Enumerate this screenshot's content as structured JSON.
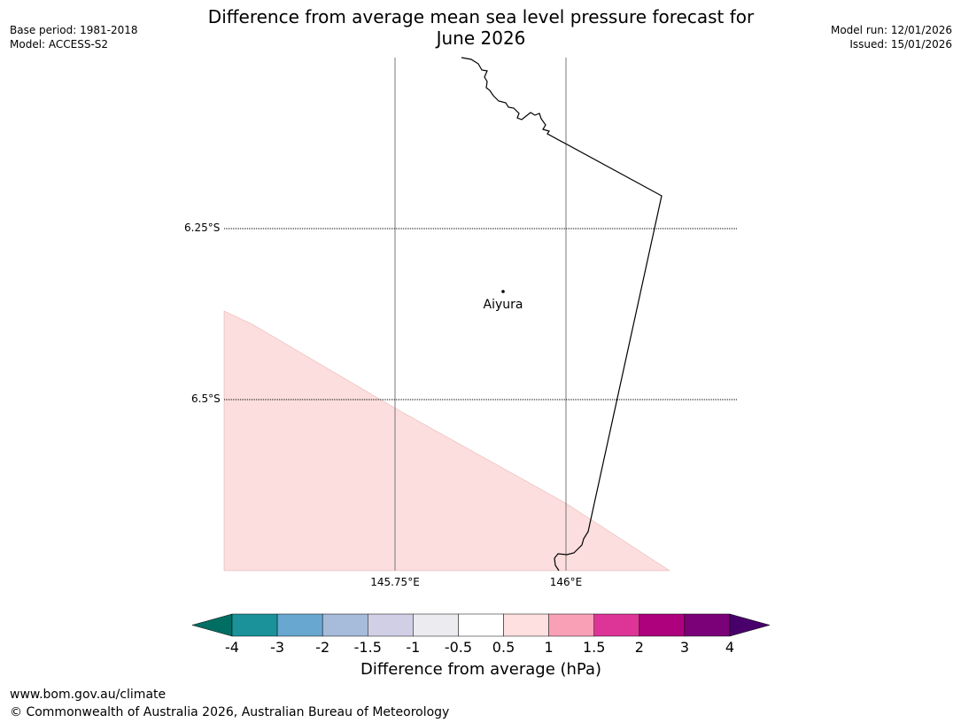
{
  "header": {
    "base_period": "Base period: 1981-2018",
    "model": "Model: ACCESS-S2",
    "title_line1": "Difference from average mean sea level pressure forecast for",
    "title_line2": "June 2026",
    "model_run": "Model run: 12/01/2026",
    "issued": "Issued: 15/01/2026"
  },
  "map": {
    "lat_labels": [
      "6.25°S",
      "6.5°S"
    ],
    "lon_labels": [
      "145.75°E",
      "146°E"
    ],
    "place": "Aiyura",
    "shaded_region_color": "#fbdedd"
  },
  "colorbar": {
    "ticks": [
      "-4",
      "-3",
      "-2",
      "-1.5",
      "-1",
      "-0.5",
      "0.5",
      "1",
      "1.5",
      "2",
      "3",
      "4"
    ],
    "colors": [
      "#006e62",
      "#1b9299",
      "#67a7d0",
      "#a7bbdb",
      "#d1cfe5",
      "#ecebef",
      "#ffffff",
      "#fde0df",
      "#f9a0b7",
      "#dd3497",
      "#ad017e",
      "#7a0178",
      "#49006a"
    ],
    "label": "Difference from average (hPa)"
  },
  "footer": {
    "url": "www.bom.gov.au/climate",
    "copyright": "© Commonwealth of Australia 2026, Australian Bureau of Meteorology"
  }
}
